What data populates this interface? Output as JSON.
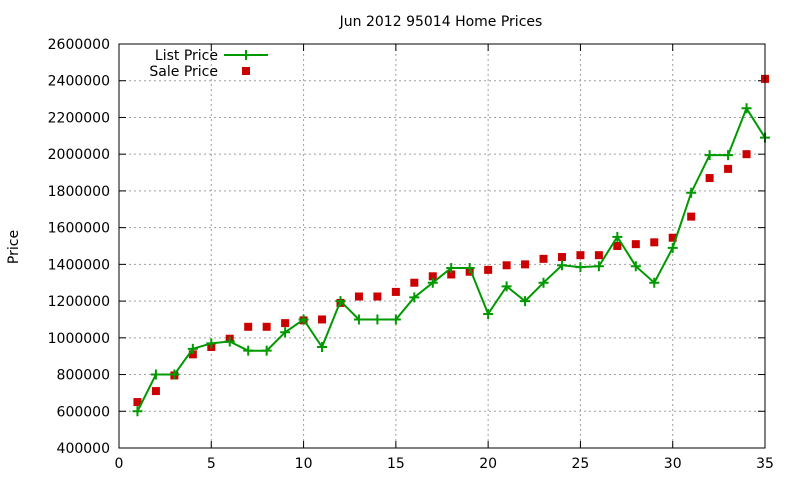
{
  "chart_data": {
    "type": "line",
    "title": "Jun 2012 95014 Home Prices",
    "xlabel": "",
    "ylabel": "Price",
    "xlim": [
      0,
      35
    ],
    "ylim": [
      400000,
      2600000
    ],
    "xticks": [
      0,
      5,
      10,
      15,
      20,
      25,
      30,
      35
    ],
    "yticks": [
      400000,
      600000,
      800000,
      1000000,
      1200000,
      1400000,
      1600000,
      1800000,
      2000000,
      2200000,
      2400000,
      2600000
    ],
    "xtick_labels": [
      "0",
      "5",
      "10",
      "15",
      "20",
      "25",
      "30",
      "35"
    ],
    "ytick_labels": [
      "400000",
      "600000",
      "800000",
      "1000000",
      "1200000",
      "1400000",
      "1600000",
      "1800000",
      "2000000",
      "2200000",
      "2400000",
      "2600000"
    ],
    "grid": true,
    "legend_position": "top-left",
    "series": [
      {
        "name": "List Price",
        "style": "line-plus",
        "color": "#009900",
        "x": [
          1,
          2,
          3,
          4,
          5,
          6,
          7,
          8,
          9,
          10,
          11,
          12,
          13,
          14,
          15,
          16,
          17,
          18,
          19,
          20,
          21,
          22,
          23,
          24,
          25,
          26,
          27,
          28,
          29,
          30,
          31,
          32,
          33,
          34,
          35
        ],
        "values": [
          600000,
          800000,
          800000,
          940000,
          970000,
          980000,
          930000,
          930000,
          1030000,
          1100000,
          950000,
          1200000,
          1100000,
          1100000,
          1100000,
          1220000,
          1300000,
          1380000,
          1380000,
          1130000,
          1280000,
          1200000,
          1300000,
          1395000,
          1385000,
          1390000,
          1550000,
          1390000,
          1300000,
          1490000,
          1790000,
          1995000,
          1995000,
          2250000,
          2090000
        ]
      },
      {
        "name": "Sale Price",
        "style": "square-markers",
        "color": "#cc0000",
        "x": [
          1,
          2,
          3,
          4,
          5,
          6,
          7,
          8,
          9,
          10,
          11,
          12,
          13,
          14,
          15,
          16,
          17,
          18,
          19,
          20,
          21,
          22,
          23,
          24,
          25,
          26,
          27,
          28,
          29,
          30,
          31,
          32,
          33,
          34,
          35
        ],
        "values": [
          650000,
          710000,
          795000,
          910000,
          950000,
          995000,
          1060000,
          1060000,
          1080000,
          1095000,
          1100000,
          1190000,
          1225000,
          1225000,
          1250000,
          1300000,
          1335000,
          1345000,
          1360000,
          1370000,
          1395000,
          1400000,
          1430000,
          1440000,
          1450000,
          1450000,
          1500000,
          1510000,
          1520000,
          1545000,
          1660000,
          1870000,
          1920000,
          2000000,
          2410000
        ]
      }
    ]
  }
}
